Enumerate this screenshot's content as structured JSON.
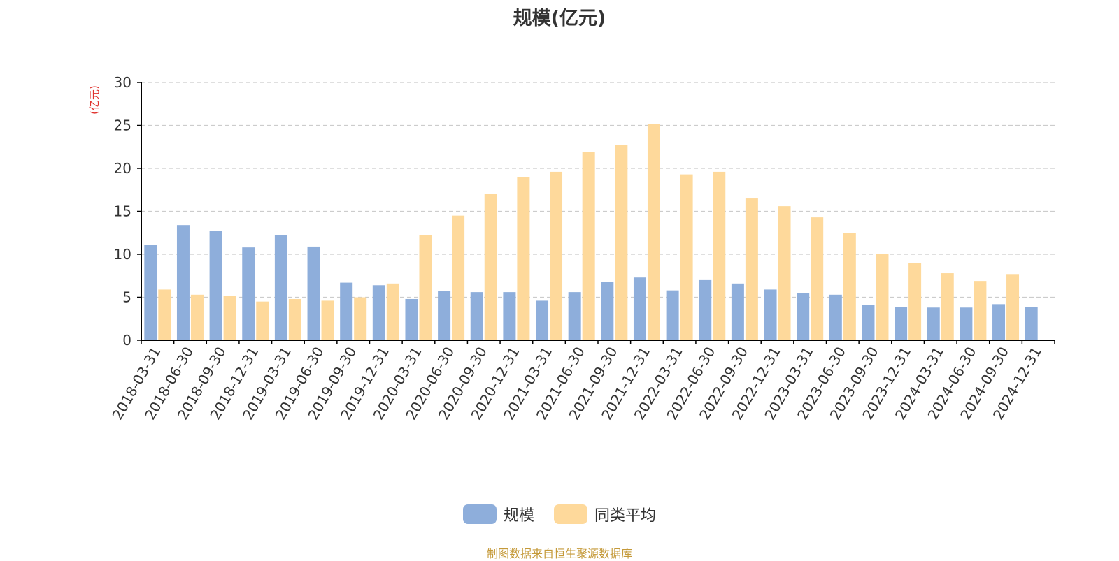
{
  "chart_data": {
    "type": "bar",
    "title": "规模(亿元)",
    "ylabel": "(亿元)",
    "xlabel": "",
    "ylim": [
      0,
      30
    ],
    "yticks": [
      0,
      5,
      10,
      15,
      20,
      25,
      30
    ],
    "grid": true,
    "legend_position": "bottom",
    "categories": [
      "2018-03-31",
      "2018-06-30",
      "2018-09-30",
      "2018-12-31",
      "2019-03-31",
      "2019-06-30",
      "2019-09-30",
      "2019-12-31",
      "2020-03-31",
      "2020-06-30",
      "2020-09-30",
      "2020-12-31",
      "2021-03-31",
      "2021-06-30",
      "2021-09-30",
      "2021-12-31",
      "2022-03-31",
      "2022-06-30",
      "2022-09-30",
      "2022-12-31",
      "2023-03-31",
      "2023-06-30",
      "2023-09-30",
      "2023-12-31",
      "2024-03-31",
      "2024-06-30",
      "2024-09-30",
      "2024-12-31"
    ],
    "series": [
      {
        "name": "规模",
        "color": "#8eaedb",
        "values": [
          11.1,
          13.4,
          12.7,
          10.8,
          12.2,
          10.9,
          6.7,
          6.4,
          4.8,
          5.7,
          5.6,
          5.6,
          4.6,
          5.6,
          6.8,
          7.3,
          5.8,
          7.0,
          6.6,
          5.9,
          5.5,
          5.3,
          4.1,
          3.9,
          3.8,
          3.8,
          4.2,
          3.9
        ]
      },
      {
        "name": "同类平均",
        "color": "#fed99b",
        "values": [
          5.9,
          5.3,
          5.2,
          4.5,
          4.8,
          4.6,
          5.0,
          6.6,
          12.2,
          14.5,
          17.0,
          19.0,
          19.6,
          21.9,
          22.7,
          25.2,
          19.3,
          19.6,
          16.5,
          15.6,
          14.3,
          12.5,
          10.0,
          9.0,
          7.8,
          6.9,
          7.7,
          null
        ]
      }
    ]
  },
  "source_note": "制图数据来自恒生聚源数据库",
  "colors": {
    "axis": "#000000",
    "grid": "#cccccc",
    "ylabel": "#e0322d",
    "text": "#333333"
  }
}
